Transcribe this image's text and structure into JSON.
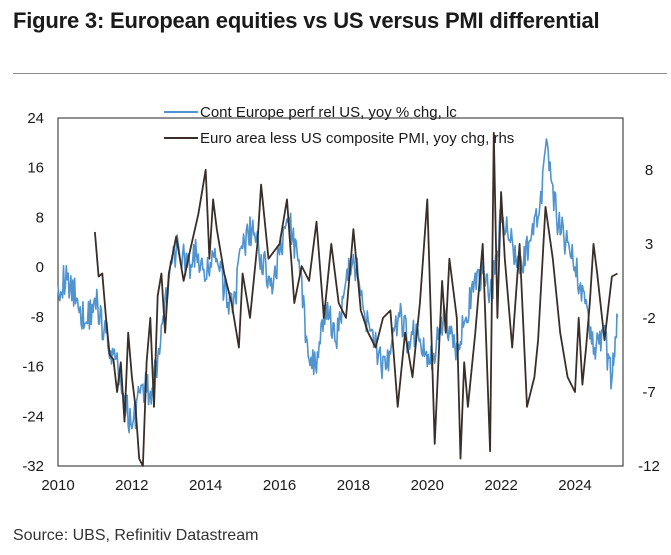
{
  "title": "Figure 3: European equities vs US versus PMI differential",
  "source": "Source: UBS, Refinitiv Datastream",
  "chart_data": {
    "type": "line",
    "title": "Figure 3: European equities vs US versus PMI differential",
    "xlabel": "",
    "ylabel": "",
    "x_ticks": [
      "2010",
      "2012",
      "2014",
      "2016",
      "2018",
      "2020",
      "2022",
      "2024"
    ],
    "xlim": [
      2010,
      2025.3
    ],
    "left_axis": {
      "ticks": [
        "24",
        "16",
        "8",
        "0",
        "-8",
        "-16",
        "-24",
        "-32"
      ],
      "ylim": [
        -32,
        24
      ]
    },
    "right_axis": {
      "ticks": [
        "8",
        "3",
        "-2",
        "-7",
        "-12"
      ],
      "ylim": [
        -12,
        11.5
      ]
    },
    "legend_position": "top-center",
    "series": [
      {
        "name": "Cont Europe perf rel US, yoy % chg, lc",
        "axis": "left",
        "color": "#4f93cf",
        "x": [
          2010.0,
          2010.25,
          2010.5,
          2010.75,
          2011.0,
          2011.25,
          2011.5,
          2011.75,
          2012.0,
          2012.25,
          2012.5,
          2012.75,
          2013.0,
          2013.25,
          2013.5,
          2013.75,
          2014.0,
          2014.25,
          2014.5,
          2014.75,
          2015.0,
          2015.25,
          2015.5,
          2015.75,
          2016.0,
          2016.25,
          2016.5,
          2016.75,
          2017.0,
          2017.25,
          2017.5,
          2017.75,
          2018.0,
          2018.25,
          2018.5,
          2018.75,
          2019.0,
          2019.25,
          2019.5,
          2019.75,
          2020.0,
          2020.25,
          2020.5,
          2020.75,
          2021.0,
          2021.25,
          2021.5,
          2021.75,
          2022.0,
          2022.25,
          2022.5,
          2022.75,
          2023.0,
          2023.25,
          2023.5,
          2023.75,
          2024.0,
          2024.25,
          2024.5,
          2024.75,
          2025.0,
          2025.15
        ],
        "y": [
          -3,
          -2,
          -5,
          -9,
          -5,
          -10,
          -14,
          -20,
          -26,
          -19,
          -20,
          -14,
          -2,
          4,
          0,
          2,
          -2,
          3,
          -4,
          -6,
          3,
          6,
          2,
          -3,
          2,
          8,
          1,
          -12,
          -17,
          -6,
          -12,
          -4,
          2,
          -6,
          -10,
          -16,
          -14,
          -8,
          -12,
          -10,
          -16,
          -12,
          -8,
          -13,
          -9,
          -4,
          -1,
          -4,
          8,
          4,
          -1,
          4,
          8,
          20,
          8,
          4,
          0,
          -4,
          -14,
          -10,
          -18,
          -8
        ]
      },
      {
        "name": "Euro area less US composite PMI, yoy chg, rhs",
        "axis": "right",
        "color": "#3a2e28",
        "x": [
          2011.0,
          2011.1,
          2011.2,
          2011.3,
          2011.4,
          2011.5,
          2011.6,
          2011.7,
          2011.8,
          2011.9,
          2012.0,
          2012.1,
          2012.2,
          2012.3,
          2012.4,
          2012.5,
          2012.6,
          2012.7,
          2012.8,
          2012.9,
          2013.0,
          2013.2,
          2013.4,
          2013.6,
          2013.8,
          2014.0,
          2014.1,
          2014.2,
          2014.3,
          2014.5,
          2014.7,
          2014.9,
          2015.0,
          2015.2,
          2015.4,
          2015.5,
          2015.7,
          2016.0,
          2016.2,
          2016.4,
          2016.6,
          2016.8,
          2017.0,
          2017.2,
          2017.4,
          2017.6,
          2017.8,
          2018.0,
          2018.2,
          2018.4,
          2018.6,
          2018.8,
          2019.0,
          2019.2,
          2019.4,
          2019.6,
          2019.8,
          2020.0,
          2020.2,
          2020.3,
          2020.4,
          2020.5,
          2020.6,
          2020.8,
          2020.9,
          2021.0,
          2021.1,
          2021.3,
          2021.5,
          2021.7,
          2021.8,
          2021.9,
          2022.0,
          2022.1,
          2022.2,
          2022.3,
          2022.5,
          2022.7,
          2022.9,
          2023.0,
          2023.2,
          2023.4,
          2023.6,
          2023.8,
          2024.0,
          2024.1,
          2024.2,
          2024.3,
          2024.4,
          2024.5,
          2024.6,
          2024.8,
          2025.0,
          2025.15
        ],
        "y": [
          3.8,
          0.8,
          1.0,
          -2.0,
          -4.5,
          -4.8,
          -7.0,
          -5.0,
          -9.0,
          -3.0,
          -6.0,
          -8.0,
          -11.5,
          -12.0,
          -5.0,
          -2.0,
          -8.0,
          -0.5,
          1.0,
          -3.0,
          1.0,
          3.5,
          0.5,
          2.8,
          5.0,
          8.0,
          2.0,
          6.0,
          4.0,
          1.0,
          -1.0,
          -4.0,
          1.0,
          -2.0,
          3.0,
          7.0,
          2.0,
          3.0,
          6.0,
          -1.0,
          1.5,
          0.5,
          4.5,
          -2.0,
          3.0,
          -1.0,
          -2.0,
          4.0,
          -1.5,
          -3.0,
          -4.0,
          -2.0,
          -1.5,
          -8.0,
          -3.0,
          -6.0,
          -1.0,
          6.0,
          -10.5,
          -5.0,
          0.5,
          -3.0,
          2.0,
          -2.0,
          -11.5,
          -5.0,
          -8.0,
          -3.0,
          3.0,
          -11.0,
          10.5,
          -2.0,
          6.5,
          2.0,
          -1.0,
          -4.0,
          3.0,
          -8.0,
          -6.0,
          -3.5,
          5.5,
          2.0,
          -3.0,
          -6.0,
          -7.0,
          -2.0,
          -6.5,
          -4.0,
          -1.0,
          3.0,
          1.0,
          -3.5,
          0.8,
          1.0
        ]
      }
    ]
  }
}
